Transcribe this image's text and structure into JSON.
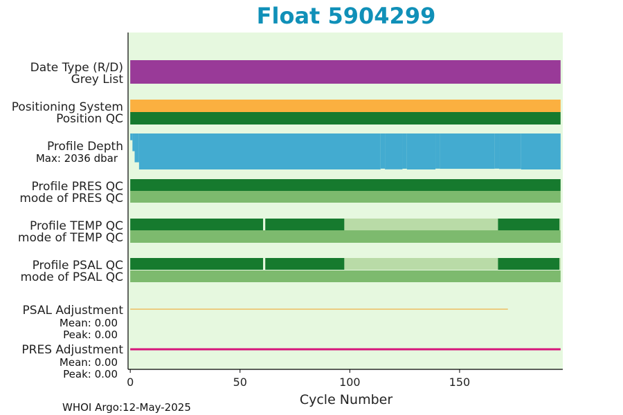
{
  "chart_data": {
    "type": "bar",
    "title": "Float 5904299",
    "xlabel": "Cycle Number",
    "xlim": [
      -1,
      197
    ],
    "xticks": [
      0,
      50,
      100,
      150
    ],
    "footer": "WHOI Argo:12-May-2025",
    "colors": {
      "title": "#1090b8",
      "plot_bg": "#e6f8df",
      "date_type": "#993a98",
      "positioning": "#fbb040",
      "qc_good": "#167a2e",
      "mode_good": "#7dba6e",
      "qc_light": "#b9dba7",
      "depth": "#43abd0",
      "depth_label": "#1090b8",
      "psal_adj": "#f0a020",
      "pres_adj": "#d6157a"
    },
    "rows": {
      "date_type": {
        "label": "Date Type (R/D)",
        "segments": [
          {
            "start": 0,
            "end": 196,
            "color": "date_type"
          }
        ]
      },
      "grey_list": {
        "label": "Grey List",
        "segments": [
          {
            "start": 0,
            "end": 196,
            "color": "date_type"
          }
        ]
      },
      "positioning_system": {
        "label": "Positioning System",
        "segments": [
          {
            "start": 0,
            "end": 196,
            "color": "positioning"
          }
        ]
      },
      "position_qc": {
        "label": "Position QC",
        "segments": [
          {
            "start": 0,
            "end": 196,
            "color": "qc_good"
          }
        ]
      },
      "profile_pres_qc": {
        "label": "Profile PRES QC",
        "segments": [
          {
            "start": 0,
            "end": 196,
            "color": "qc_good"
          }
        ]
      },
      "mode_pres_qc": {
        "label": "mode of PRES QC",
        "segments": [
          {
            "start": 0,
            "end": 196,
            "color": "mode_good"
          }
        ]
      },
      "profile_temp_qc": {
        "label": "Profile TEMP QC",
        "segments": [
          {
            "start": 0,
            "end": 60.5,
            "color": "qc_good"
          },
          {
            "start": 61.5,
            "end": 97.5,
            "color": "qc_good"
          },
          {
            "start": 97.5,
            "end": 167.5,
            "color": "qc_light"
          },
          {
            "start": 167.5,
            "end": 195.5,
            "color": "qc_good"
          },
          {
            "start": 195.5,
            "end": 196,
            "color": "qc_light"
          }
        ]
      },
      "mode_temp_qc": {
        "label": "mode of TEMP QC",
        "segments": [
          {
            "start": 0,
            "end": 196,
            "color": "mode_good"
          }
        ]
      },
      "profile_psal_qc": {
        "label": "Profile PSAL QC",
        "segments": [
          {
            "start": 0,
            "end": 60.5,
            "color": "qc_good"
          },
          {
            "start": 61.5,
            "end": 97.5,
            "color": "qc_good"
          },
          {
            "start": 97.5,
            "end": 167.5,
            "color": "qc_light"
          },
          {
            "start": 167.5,
            "end": 195.5,
            "color": "qc_good"
          },
          {
            "start": 195.5,
            "end": 196,
            "color": "qc_light"
          }
        ]
      },
      "mode_psal_qc": {
        "label": "mode of PSAL QC",
        "segments": [
          {
            "start": 0,
            "end": 196,
            "color": "mode_good"
          }
        ]
      }
    },
    "profile_depth": {
      "label": "Profile Depth",
      "max_label": "Max: 2036 dbar",
      "max_dbar": 2036,
      "depth_steps": [
        {
          "start": 0,
          "end": 1,
          "dbar": 380
        },
        {
          "start": 1,
          "end": 2,
          "dbar": 1000
        },
        {
          "start": 2,
          "end": 4,
          "dbar": 1630
        },
        {
          "start": 4,
          "end": 114,
          "dbar": 2036
        },
        {
          "start": 114,
          "end": 116,
          "dbar": 1990
        },
        {
          "start": 116,
          "end": 124,
          "dbar": 2030
        },
        {
          "start": 124,
          "end": 126,
          "dbar": 1995
        },
        {
          "start": 126,
          "end": 139,
          "dbar": 2036
        },
        {
          "start": 139,
          "end": 141,
          "dbar": 1990
        },
        {
          "start": 141,
          "end": 166,
          "dbar": 2000
        },
        {
          "start": 166,
          "end": 168,
          "dbar": 1990
        },
        {
          "start": 168,
          "end": 178,
          "dbar": 2010
        },
        {
          "start": 178,
          "end": 196,
          "dbar": 2036
        }
      ]
    },
    "psal_adjustment": {
      "label": "PSAL Adjustment",
      "mean_label": "Mean: 0.00",
      "peak_label": "Peak: 0.00",
      "x_start": 0,
      "x_end": 172,
      "value": 0.0
    },
    "pres_adjustment": {
      "label": "PRES Adjustment",
      "mean_label": "Mean: 0.00",
      "peak_label": "Peak: 0.00",
      "x_start": 0,
      "x_end": 196,
      "value": 0.0
    }
  }
}
